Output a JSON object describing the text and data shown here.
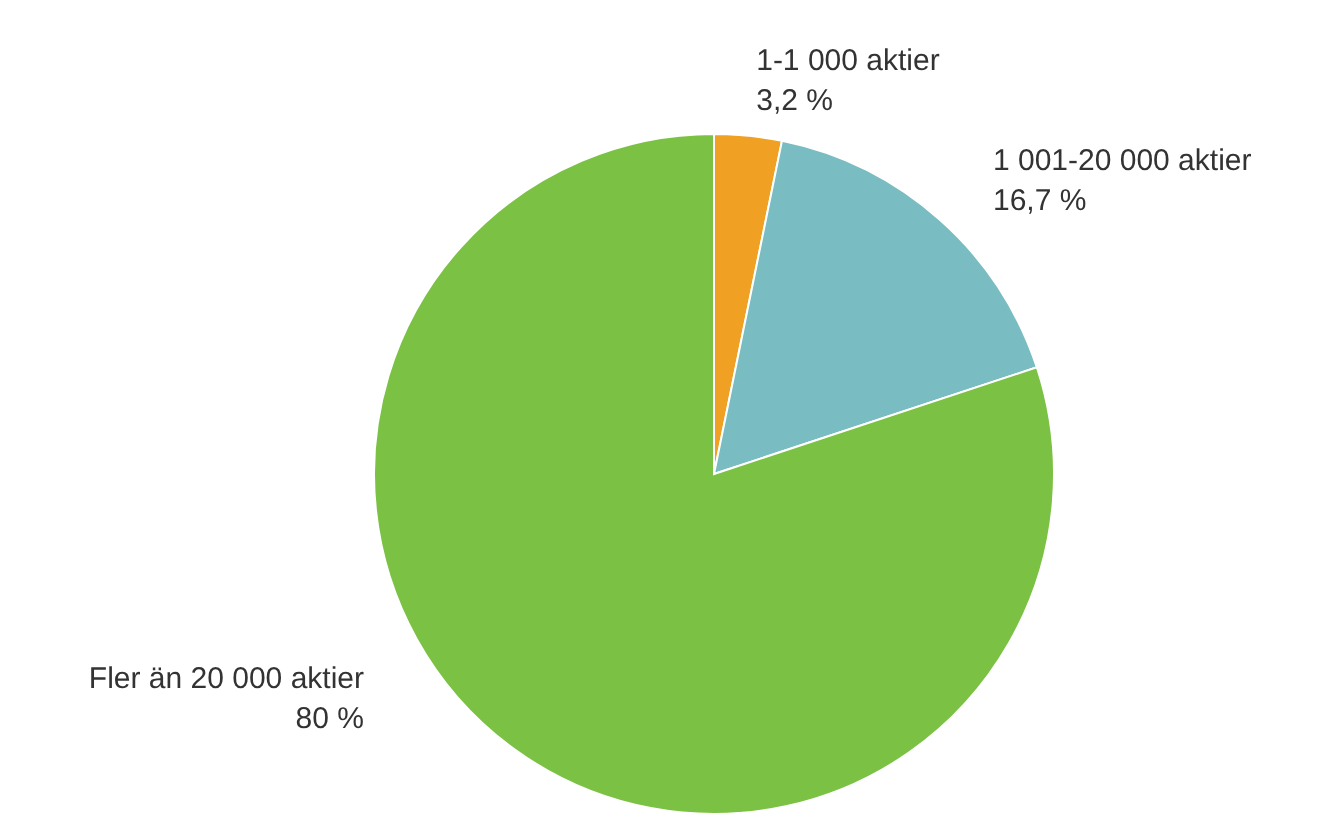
{
  "chart_data": {
    "type": "pie",
    "categories": [
      "1-1 000 aktier",
      "1 001-20 000 aktier",
      "Fler än 20 000 aktier"
    ],
    "values": [
      3.2,
      16.7,
      80
    ],
    "value_labels": [
      "3,2 %",
      "16,7 %",
      "80 %"
    ],
    "colors": [
      "#f0a023",
      "#79bcc1",
      "#7bc143"
    ]
  }
}
